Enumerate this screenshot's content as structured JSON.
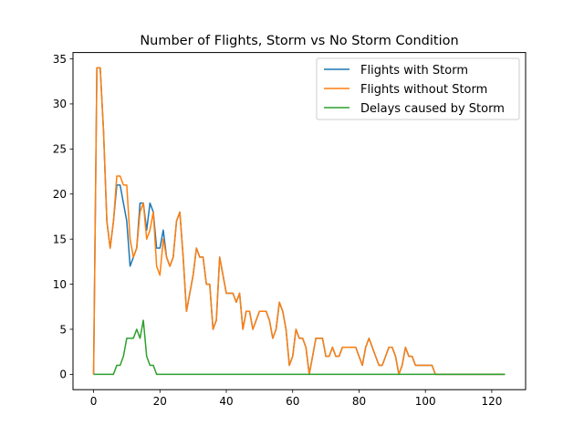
{
  "chart_data": {
    "type": "line",
    "title": "Number of Flights, Storm vs No Storm Condition",
    "xlabel": "",
    "ylabel": "",
    "xlim": [
      -6.2,
      130.2
    ],
    "ylim": [
      -1.7,
      35.7
    ],
    "xticks": [
      0,
      20,
      40,
      60,
      80,
      100,
      120
    ],
    "yticks": [
      0,
      5,
      10,
      15,
      20,
      25,
      30,
      35
    ],
    "grid": false,
    "legend_position": "top-right",
    "series": [
      {
        "name": "Flights with Storm",
        "color": "#1f77b4",
        "points": [
          [
            0,
            0
          ],
          [
            1,
            34
          ],
          [
            2,
            34
          ],
          [
            3,
            27
          ],
          [
            4,
            17
          ],
          [
            5,
            14
          ],
          [
            6,
            17
          ],
          [
            7,
            21
          ],
          [
            8,
            21
          ],
          [
            9,
            19
          ],
          [
            10,
            17
          ],
          [
            11,
            12
          ],
          [
            12,
            13
          ],
          [
            13,
            14
          ],
          [
            14,
            19
          ],
          [
            15,
            19
          ],
          [
            16,
            16
          ],
          [
            17,
            19
          ],
          [
            18,
            18
          ],
          [
            19,
            14
          ],
          [
            20,
            14
          ],
          [
            21,
            16
          ],
          [
            22,
            13
          ],
          [
            23,
            12
          ],
          [
            24,
            13
          ],
          [
            25,
            17
          ],
          [
            26,
            18
          ],
          [
            27,
            13
          ],
          [
            28,
            7
          ],
          [
            29,
            9
          ],
          [
            30,
            11
          ],
          [
            31,
            14
          ],
          [
            32,
            13
          ],
          [
            33,
            13
          ],
          [
            34,
            10
          ],
          [
            35,
            10
          ],
          [
            36,
            5
          ],
          [
            37,
            6
          ],
          [
            38,
            13
          ],
          [
            39,
            11
          ],
          [
            40,
            9
          ],
          [
            41,
            9
          ],
          [
            42,
            9
          ],
          [
            43,
            8
          ],
          [
            44,
            9
          ],
          [
            45,
            5
          ],
          [
            46,
            7
          ],
          [
            47,
            7
          ],
          [
            48,
            5
          ],
          [
            49,
            6
          ],
          [
            50,
            7
          ],
          [
            51,
            7
          ],
          [
            52,
            7
          ],
          [
            53,
            6
          ],
          [
            54,
            4
          ],
          [
            55,
            5
          ],
          [
            56,
            8
          ],
          [
            57,
            7
          ],
          [
            58,
            5
          ],
          [
            59,
            1
          ],
          [
            60,
            2
          ],
          [
            61,
            5
          ],
          [
            62,
            4
          ],
          [
            63,
            4
          ],
          [
            64,
            3
          ],
          [
            65,
            0
          ],
          [
            66,
            2
          ],
          [
            67,
            4
          ],
          [
            68,
            4
          ],
          [
            69,
            4
          ],
          [
            70,
            2
          ],
          [
            71,
            2
          ],
          [
            72,
            3
          ],
          [
            73,
            2
          ],
          [
            74,
            2
          ],
          [
            75,
            3
          ],
          [
            76,
            3
          ],
          [
            77,
            3
          ],
          [
            78,
            3
          ],
          [
            79,
            3
          ],
          [
            80,
            2
          ],
          [
            81,
            1
          ],
          [
            82,
            3
          ],
          [
            83,
            4
          ],
          [
            84,
            3
          ],
          [
            85,
            2
          ],
          [
            86,
            1
          ],
          [
            87,
            1
          ],
          [
            88,
            2
          ],
          [
            89,
            3
          ],
          [
            90,
            3
          ],
          [
            91,
            2
          ],
          [
            92,
            0
          ],
          [
            93,
            1
          ],
          [
            94,
            3
          ],
          [
            95,
            2
          ],
          [
            96,
            2
          ],
          [
            97,
            1
          ],
          [
            98,
            1
          ],
          [
            99,
            1
          ],
          [
            100,
            1
          ],
          [
            101,
            1
          ],
          [
            102,
            1
          ],
          [
            103,
            0
          ],
          [
            124,
            0
          ]
        ]
      },
      {
        "name": "Flights without Storm",
        "color": "#ff7f0e",
        "points": [
          [
            0,
            0
          ],
          [
            1,
            34
          ],
          [
            2,
            34
          ],
          [
            3,
            27
          ],
          [
            4,
            17
          ],
          [
            5,
            14
          ],
          [
            6,
            17
          ],
          [
            7,
            22
          ],
          [
            8,
            22
          ],
          [
            9,
            21
          ],
          [
            10,
            21
          ],
          [
            11,
            15
          ],
          [
            12,
            13
          ],
          [
            13,
            14
          ],
          [
            14,
            18
          ],
          [
            15,
            19
          ],
          [
            16,
            15
          ],
          [
            17,
            16
          ],
          [
            18,
            18
          ],
          [
            19,
            12
          ],
          [
            20,
            11
          ],
          [
            21,
            15
          ],
          [
            22,
            13
          ],
          [
            23,
            12
          ],
          [
            24,
            13
          ],
          [
            25,
            17
          ],
          [
            26,
            18
          ],
          [
            27,
            13
          ],
          [
            28,
            7
          ],
          [
            29,
            9
          ],
          [
            30,
            11
          ],
          [
            31,
            14
          ],
          [
            32,
            13
          ],
          [
            33,
            13
          ],
          [
            34,
            10
          ],
          [
            35,
            10
          ],
          [
            36,
            5
          ],
          [
            37,
            6
          ],
          [
            38,
            13
          ],
          [
            39,
            11
          ],
          [
            40,
            9
          ],
          [
            41,
            9
          ],
          [
            42,
            9
          ],
          [
            43,
            8
          ],
          [
            44,
            9
          ],
          [
            45,
            5
          ],
          [
            46,
            7
          ],
          [
            47,
            7
          ],
          [
            48,
            5
          ],
          [
            49,
            6
          ],
          [
            50,
            7
          ],
          [
            51,
            7
          ],
          [
            52,
            7
          ],
          [
            53,
            6
          ],
          [
            54,
            4
          ],
          [
            55,
            5
          ],
          [
            56,
            8
          ],
          [
            57,
            7
          ],
          [
            58,
            5
          ],
          [
            59,
            1
          ],
          [
            60,
            2
          ],
          [
            61,
            5
          ],
          [
            62,
            4
          ],
          [
            63,
            4
          ],
          [
            64,
            3
          ],
          [
            65,
            0
          ],
          [
            66,
            2
          ],
          [
            67,
            4
          ],
          [
            68,
            4
          ],
          [
            69,
            4
          ],
          [
            70,
            2
          ],
          [
            71,
            2
          ],
          [
            72,
            3
          ],
          [
            73,
            2
          ],
          [
            74,
            2
          ],
          [
            75,
            3
          ],
          [
            76,
            3
          ],
          [
            77,
            3
          ],
          [
            78,
            3
          ],
          [
            79,
            3
          ],
          [
            80,
            2
          ],
          [
            81,
            1
          ],
          [
            82,
            3
          ],
          [
            83,
            4
          ],
          [
            84,
            3
          ],
          [
            85,
            2
          ],
          [
            86,
            1
          ],
          [
            87,
            1
          ],
          [
            88,
            2
          ],
          [
            89,
            3
          ],
          [
            90,
            3
          ],
          [
            91,
            2
          ],
          [
            92,
            0
          ],
          [
            93,
            1
          ],
          [
            94,
            3
          ],
          [
            95,
            2
          ],
          [
            96,
            2
          ],
          [
            97,
            1
          ],
          [
            98,
            1
          ],
          [
            99,
            1
          ],
          [
            100,
            1
          ],
          [
            101,
            1
          ],
          [
            102,
            1
          ],
          [
            103,
            0
          ],
          [
            124,
            0
          ]
        ]
      },
      {
        "name": "Delays caused by Storm",
        "color": "#2ca02c",
        "points": [
          [
            0,
            0
          ],
          [
            1,
            0
          ],
          [
            2,
            0
          ],
          [
            3,
            0
          ],
          [
            4,
            0
          ],
          [
            5,
            0
          ],
          [
            6,
            0
          ],
          [
            7,
            1
          ],
          [
            8,
            1
          ],
          [
            9,
            2
          ],
          [
            10,
            4
          ],
          [
            11,
            4
          ],
          [
            12,
            4
          ],
          [
            13,
            5
          ],
          [
            14,
            4
          ],
          [
            15,
            6
          ],
          [
            16,
            2
          ],
          [
            17,
            1
          ],
          [
            18,
            1
          ],
          [
            19,
            0
          ],
          [
            124,
            0
          ]
        ]
      }
    ]
  }
}
